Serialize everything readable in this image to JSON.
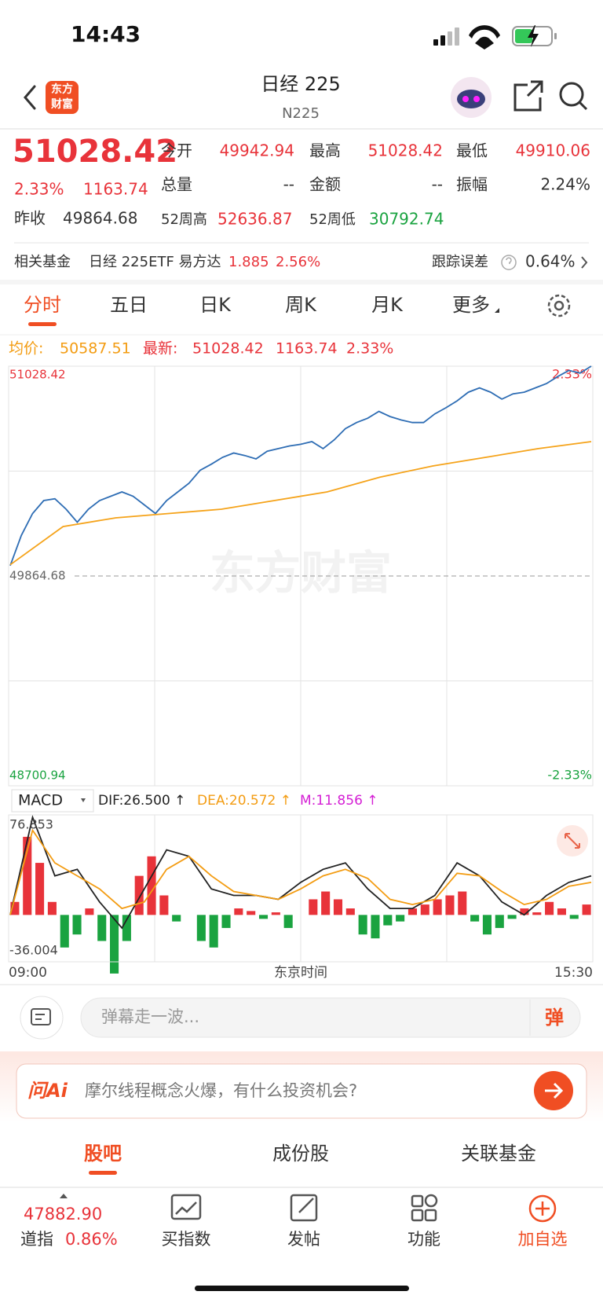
{
  "status_bar": {
    "time": "14:43"
  },
  "header": {
    "logo": [
      "东方",
      "财富"
    ],
    "title": "日经 225",
    "subtitle": "N225"
  },
  "quote": {
    "price": "51028.42",
    "change_pct": "2.33%",
    "change": "1163.74",
    "open_label": "今开",
    "open": "49942.94",
    "high_label": "最高",
    "high": "51028.42",
    "low_label": "最低",
    "low": "49910.06",
    "volume_label": "总量",
    "volume": "--",
    "amount_label": "金额",
    "amount": "--",
    "amplitude_label": "振幅",
    "amplitude": "2.24%",
    "prev_close_label": "昨收",
    "prev_close": "49864.68",
    "w52_high_label": "52周高",
    "w52_high": "52636.87",
    "w52_low_label": "52周低",
    "w52_low": "30792.74"
  },
  "fund": {
    "label": "相关基金",
    "name": "日经 225ETF 易方达",
    "price": "1.885",
    "pct": "2.56%",
    "tracking_label": "跟踪误差",
    "tracking": "0.64%"
  },
  "tabs": [
    "分时",
    "五日",
    "日K",
    "周K",
    "月K",
    "更多"
  ],
  "legend": {
    "avg_label": "均价:",
    "avg": "50587.51",
    "latest_label": "最新:",
    "latest": "51028.42",
    "change": "1163.74",
    "pct": "2.33%"
  },
  "chart_data": [
    {
      "type": "line",
      "watermark": "东方财富",
      "series": [
        {
          "color": "#2e6db4",
          "values": [
            49922,
            50090,
            50211,
            50283,
            50293,
            50235,
            50163,
            50235,
            50283,
            50307,
            50331,
            50307,
            50259,
            50211,
            50283,
            50331,
            50379,
            50451,
            50485,
            50523,
            50547,
            50533,
            50514,
            50557,
            50571,
            50586,
            50595,
            50610,
            50571,
            50620,
            50682,
            50716,
            50740,
            50778,
            50749,
            50730,
            50716,
            50716,
            50764,
            50798,
            50836,
            50884,
            50908,
            50884,
            50846,
            50875,
            50884,
            50908,
            50932,
            50971,
            51005,
            50990,
            51028.42
          ]
        },
        {
          "color": "#f5a31a",
          "values": [
            49927,
            50139,
            50187,
            50211,
            50235,
            50283,
            50331,
            50413,
            50475,
            50523,
            50571,
            50610
          ]
        }
      ],
      "ylim": [
        48700.94,
        51028.42
      ],
      "yticks": [
        51028.42,
        49864.68,
        48700.94
      ],
      "y2lim": [
        -2.33,
        2.33
      ],
      "y2ticks": [
        {
          "value": 2.33,
          "label": "2.33%"
        },
        {
          "value": -2.33,
          "label": "-2.33%"
        }
      ],
      "up_color": "#e8333a",
      "down_color": "#1aa340"
    },
    {
      "type": "macd",
      "indicator": "MACD",
      "legend": [
        {
          "text": "DIF:26.500 ↑",
          "color": "#222222"
        },
        {
          "text": "DEA:20.572 ↑",
          "color": "#f39c12"
        },
        {
          "text": "M:11.856 ↑",
          "color": "#d41fd4"
        }
      ],
      "series": [
        {
          "color": "#222222",
          "values": [
            0,
            75,
            30,
            35,
            10,
            -10,
            20,
            50,
            45,
            20,
            15,
            15,
            12,
            25,
            35,
            40,
            20,
            5,
            5,
            15,
            40,
            30,
            10,
            0,
            15,
            25,
            30
          ]
        },
        {
          "color": "#f39c12",
          "values": [
            0,
            65,
            40,
            30,
            20,
            5,
            10,
            35,
            45,
            30,
            18,
            15,
            12,
            20,
            30,
            35,
            28,
            12,
            8,
            12,
            32,
            30,
            18,
            8,
            12,
            22,
            25
          ]
        }
      ],
      "histogram": {
        "up_color": "#e8333a",
        "down_color": "#1aa340",
        "values": [
          10,
          60,
          40,
          10,
          -25,
          -15,
          5,
          -20,
          -45,
          -20,
          30,
          45,
          15,
          -5,
          0,
          -20,
          -25,
          -10,
          5,
          3,
          -3,
          2,
          -10,
          0,
          12,
          18,
          12,
          5,
          -15,
          -18,
          -8,
          -5,
          5,
          8,
          12,
          15,
          18,
          -5,
          -15,
          -10,
          -3,
          5,
          2,
          10,
          5,
          -3,
          8
        ]
      },
      "ylim": [
        -36.004,
        76.853
      ],
      "yticks": [
        76.853,
        -36.004
      ],
      "time_labels": [
        "09:00",
        "15:30"
      ],
      "xlabel": "东京时间"
    }
  ],
  "comment": {
    "placeholder": "弹幕走一波...",
    "button": "弹"
  },
  "ai": {
    "brand": "问Ai",
    "question": "摩尔线程概念火爆，有什么投资机会?"
  },
  "sub_tabs": [
    "股吧",
    "成份股",
    "关联基金"
  ],
  "bottom_bar": {
    "index_value": "47882.90",
    "index_name": "道指",
    "index_pct": "0.86%",
    "items": [
      "买指数",
      "发帖",
      "功能",
      "加自选"
    ]
  }
}
